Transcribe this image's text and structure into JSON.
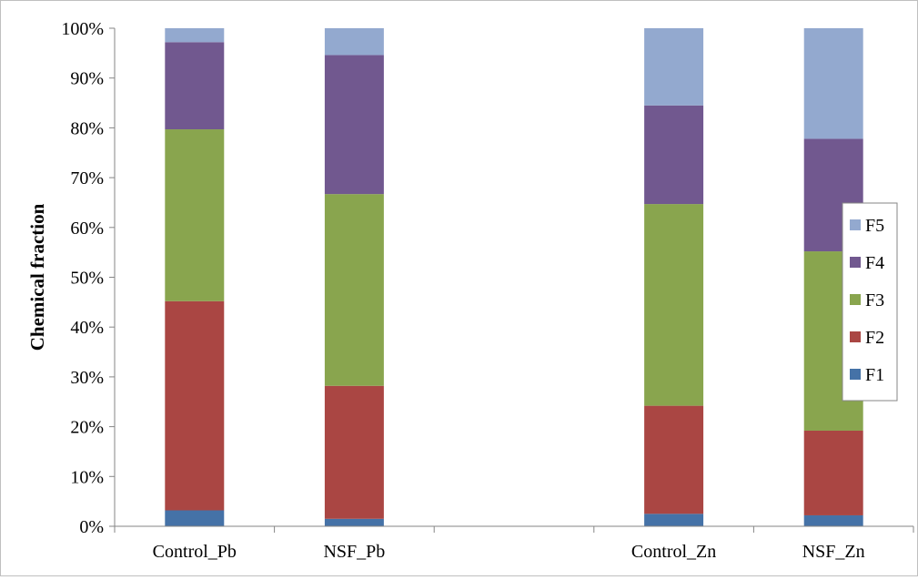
{
  "chart_data": {
    "type": "bar",
    "stacked": "percent",
    "title": "",
    "xlabel": "",
    "ylabel": "Chemical fraction",
    "ylim": [
      0,
      100
    ],
    "yticks": [
      "0%",
      "10%",
      "20%",
      "30%",
      "40%",
      "50%",
      "60%",
      "70%",
      "80%",
      "90%",
      "100%"
    ],
    "categories": [
      "Control_Pb",
      "NSF_Pb",
      "",
      "Control_Zn",
      "NSF_Zn"
    ],
    "series": [
      {
        "name": "F1",
        "color": "#4572a7",
        "values": [
          3.2,
          1.5,
          null,
          2.5,
          2.2
        ]
      },
      {
        "name": "F2",
        "color": "#aa4643",
        "values": [
          42.0,
          26.7,
          null,
          21.7,
          17.0
        ]
      },
      {
        "name": "F3",
        "color": "#89a54e",
        "values": [
          34.5,
          38.5,
          null,
          40.5,
          36.0
        ]
      },
      {
        "name": "F4",
        "color": "#71588f",
        "values": [
          17.5,
          27.9,
          null,
          19.8,
          22.6
        ]
      },
      {
        "name": "F5",
        "color": "#93a9cf",
        "values": [
          2.8,
          5.4,
          null,
          15.5,
          22.2
        ]
      }
    ],
    "grid": false,
    "legend": "right"
  }
}
